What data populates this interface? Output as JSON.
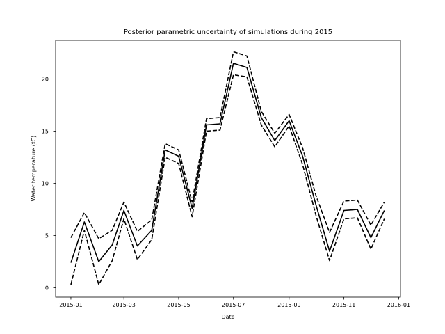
{
  "chart_data": {
    "type": "line",
    "title": "Posterior parametric uncertainty of simulations during 2015",
    "xlabel": "Date",
    "ylabel": "Water temperature (ºC)",
    "xlim": [
      "2014-12-15",
      "2016-01-03"
    ],
    "ylim": [
      -0.9,
      23.7
    ],
    "x_ticks": [
      "2015-01",
      "2015-03",
      "2015-05",
      "2015-07",
      "2015-09",
      "2015-11",
      "2016-01"
    ],
    "y_ticks": [
      0,
      5,
      10,
      15,
      20
    ],
    "grid": false,
    "legend": "none",
    "x": [
      "2015-01-01",
      "2015-01-16",
      "2015-02-01",
      "2015-02-16",
      "2015-03-01",
      "2015-03-16",
      "2015-04-01",
      "2015-04-16",
      "2015-05-01",
      "2015-05-16",
      "2015-06-01",
      "2015-06-16",
      "2015-07-01",
      "2015-07-16",
      "2015-08-01",
      "2015-08-16",
      "2015-09-01",
      "2015-09-16",
      "2015-10-01",
      "2015-10-16",
      "2015-11-01",
      "2015-11-16",
      "2015-12-01",
      "2015-12-16"
    ],
    "series": [
      {
        "style": "solid",
        "color": "#000000",
        "values": [
          2.4,
          6.3,
          2.5,
          4.1,
          7.4,
          4.0,
          5.5,
          13.2,
          12.6,
          7.6,
          15.6,
          15.7,
          21.5,
          21.1,
          16.3,
          14.1,
          16.0,
          12.6,
          7.9,
          3.5,
          7.4,
          7.5,
          4.8,
          7.4
        ]
      },
      {
        "style": "dashed",
        "color": "#000000",
        "values": [
          4.8,
          7.2,
          4.7,
          5.5,
          8.2,
          5.4,
          6.5,
          13.8,
          13.2,
          8.2,
          16.2,
          16.3,
          22.6,
          22.2,
          16.9,
          14.8,
          16.6,
          13.4,
          8.8,
          5.3,
          8.3,
          8.4,
          6.0,
          8.2
        ]
      },
      {
        "style": "dashed",
        "color": "#000000",
        "values": [
          0.3,
          5.5,
          0.3,
          2.6,
          6.6,
          2.7,
          4.6,
          12.5,
          11.9,
          6.8,
          15.0,
          15.1,
          20.4,
          20.2,
          15.6,
          13.5,
          15.5,
          11.8,
          6.9,
          2.6,
          6.6,
          6.7,
          3.7,
          6.6
        ]
      }
    ]
  }
}
